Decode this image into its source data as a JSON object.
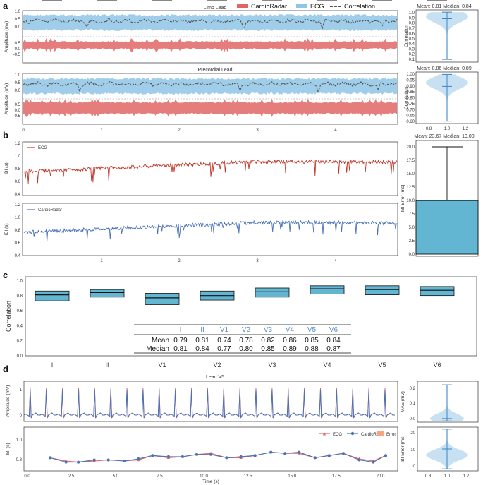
{
  "colors": {
    "radar_red": "#e06666",
    "radar_red_dark": "#c0392b",
    "ecg_blue": "#8fc5e6",
    "ibi_blue": "#4a72b8",
    "violin": "#b9d9ef",
    "violin_line": "#3d85c6",
    "box": "#63b6d2",
    "tick_blue": "#5b8fc4",
    "error_orange": "#f4a582"
  },
  "panel_labels": [
    "a",
    "b",
    "c",
    "d"
  ],
  "panel_a": {
    "legend": [
      {
        "label": "CardioRadar",
        "color": "#e06666",
        "style": "band"
      },
      {
        "label": "ECG",
        "color": "#8fc5e6",
        "style": "band"
      },
      {
        "label": "Correlation",
        "color": "#555555",
        "style": "dash"
      }
    ],
    "limb": {
      "title": "Limb Lead",
      "ylabel": "Amplitude (mV)",
      "yticks_top": [
        "1.0",
        "0.5",
        "0.0"
      ],
      "yticks_bottom": [
        "0.5",
        "0.0",
        "-0.5"
      ]
    },
    "precordial": {
      "title": "Precordial Lead",
      "ylabel": "Amplitude (mV)",
      "yticks_top": [
        "1.0",
        "0.5",
        "0.0"
      ],
      "yticks_bottom": [
        "0.5",
        "0.0",
        "-0.5"
      ]
    },
    "xticks": [
      "0",
      "1",
      "2",
      "3",
      "4"
    ],
    "violin_limb": {
      "title": "Mean: 0.81 Median: 0.84",
      "ylabel": "Correlation",
      "yticks": [
        "1.0",
        "0.9",
        "0.8",
        "0.7",
        "0.6",
        "0.5",
        "0.4",
        "0.3",
        "0.2",
        "0.1"
      ]
    },
    "violin_precordial": {
      "title": "Mean: 0.86 Median: 0.89",
      "ylabel": "Correlation",
      "yticks": [
        "1.00",
        "0.95",
        "0.90",
        "0.85",
        "0.80",
        "0.75",
        "0.70",
        "0.65",
        "0.60"
      ],
      "xticks": [
        "0.8",
        "1.0",
        "1.2"
      ]
    }
  },
  "panel_b": {
    "ecg_legend": "ECG",
    "radar_legend": "CardioRadar",
    "ylabel": "IBI (s)",
    "yticks": [
      "1.2",
      "1.0",
      "0.8",
      "0.6",
      "0.4"
    ],
    "xticks": [
      "1",
      "2",
      "3",
      "4"
    ],
    "box_title": "Mean: 23.67 Median: 10.00",
    "box_ylabel": "IBI Error (ms)",
    "box_yticks": [
      "20.0",
      "17.5",
      "15.0",
      "12.5",
      "10.0",
      "7.5",
      "5.0",
      "2.5",
      "0.0"
    ]
  },
  "panel_c": {
    "ylabel": "Correlation",
    "yticks": [
      "1.0",
      "0.8",
      "0.6",
      "0.4",
      "0.2",
      "0.0"
    ],
    "leads": [
      "I",
      "II",
      "V1",
      "V2",
      "V3",
      "V4",
      "V5",
      "V6"
    ],
    "table": {
      "row_labels": [
        "Mean",
        "Median"
      ]
    }
  },
  "panel_d": {
    "title": "Lead V5",
    "ylabel_top": "Amplitude (mV)",
    "yticks_top": [
      "1",
      "0"
    ],
    "ylabel_bottom": "IBI (s)",
    "yticks_bottom": [
      "1.0",
      "0.8"
    ],
    "xlabel": "Time (s)",
    "xticks": [
      "0.0",
      "2.5",
      "5.0",
      "7.5",
      "10.0",
      "12.5",
      "15.0",
      "17.5",
      "20.0"
    ],
    "legend": [
      "ECG",
      "CardioRadar",
      "Error"
    ],
    "mae": {
      "ylabel": "MAE (mV)",
      "yticks": [
        "0.2",
        "0.1",
        "0.0"
      ]
    },
    "ibi_err": {
      "ylabel": "IBI Error (ms)",
      "yticks": [
        "20",
        "10",
        "0"
      ],
      "xticks": [
        "0.8",
        "1.0",
        "1.2"
      ]
    }
  },
  "chart_data": [
    {
      "type": "box",
      "id": "lead_correlation",
      "title": "Correlation per lead",
      "ylabel": "Correlation",
      "ylim": [
        0.0,
        1.0
      ],
      "categories": [
        "I",
        "II",
        "V1",
        "V2",
        "V3",
        "V4",
        "V5",
        "V6"
      ],
      "whisker_low": [
        0.55,
        0.62,
        0.43,
        0.54,
        0.6,
        0.66,
        0.64,
        0.62
      ],
      "q1": [
        0.73,
        0.78,
        0.68,
        0.74,
        0.78,
        0.82,
        0.81,
        0.8
      ],
      "median": [
        0.81,
        0.84,
        0.77,
        0.8,
        0.85,
        0.89,
        0.88,
        0.87
      ],
      "q3": [
        0.86,
        0.88,
        0.83,
        0.86,
        0.9,
        0.93,
        0.93,
        0.92
      ],
      "whisker_high": [
        0.97,
        0.96,
        0.95,
        0.97,
        0.98,
        0.99,
        0.99,
        0.99
      ],
      "mean": [
        0.79,
        0.81,
        0.74,
        0.78,
        0.82,
        0.86,
        0.85,
        0.84
      ]
    },
    {
      "type": "box",
      "id": "ibi_error",
      "title": "Mean: 23.67 Median: 10.00",
      "ylabel": "IBI Error (ms)",
      "ylim": [
        0,
        20
      ],
      "whisker_low": 0.0,
      "q1": 0.0,
      "median": 10.0,
      "q3": 10.0,
      "whisker_high": 20.0
    },
    {
      "type": "line",
      "id": "lead_v5_ibi",
      "xlabel": "Time (s)",
      "ylabel": "IBI (s)",
      "ylim": [
        0.7,
        1.1
      ],
      "series": [
        {
          "name": "ECG",
          "x": [
            1.3,
            2.2,
            2.9,
            3.8,
            4.6,
            5.5,
            6.3,
            7.1,
            8.0,
            8.8,
            9.6,
            10.4,
            11.3,
            12.1,
            12.9,
            13.8,
            14.6,
            15.4,
            16.3,
            17.1,
            17.9,
            18.8,
            19.6,
            20.3
          ],
          "values": [
            0.82,
            0.79,
            0.78,
            0.79,
            0.8,
            0.79,
            0.8,
            0.84,
            0.82,
            0.83,
            0.85,
            0.86,
            0.82,
            0.82,
            0.84,
            0.87,
            0.86,
            0.86,
            0.82,
            0.84,
            0.86,
            0.81,
            0.79,
            0.84
          ]
        },
        {
          "name": "CardioRadar",
          "x": [
            1.3,
            2.2,
            2.9,
            3.8,
            4.6,
            5.5,
            6.3,
            7.1,
            8.0,
            8.8,
            9.6,
            10.4,
            11.3,
            12.1,
            12.9,
            13.8,
            14.6,
            15.4,
            16.3,
            17.1,
            17.9,
            18.8,
            19.6,
            20.3
          ],
          "values": [
            0.82,
            0.78,
            0.78,
            0.8,
            0.8,
            0.79,
            0.81,
            0.84,
            0.83,
            0.83,
            0.85,
            0.85,
            0.82,
            0.83,
            0.84,
            0.87,
            0.86,
            0.87,
            0.82,
            0.84,
            0.86,
            0.8,
            0.78,
            0.84
          ]
        }
      ]
    },
    {
      "type": "violin",
      "id": "limb_correlation",
      "title": "Mean: 0.81 Median: 0.84",
      "ylabel": "Correlation",
      "ylim": [
        0.05,
        1.0
      ],
      "min": 0.1,
      "median": 0.84,
      "max": 0.96
    },
    {
      "type": "violin",
      "id": "precordial_correlation",
      "title": "Mean: 0.86 Median: 0.89",
      "ylabel": "Correlation",
      "ylim": [
        0.58,
        1.01
      ],
      "min": 0.6,
      "median": 0.89,
      "max": 0.99
    },
    {
      "type": "violin",
      "id": "v5_mae",
      "ylabel": "MAE (mV)",
      "ylim": [
        -0.01,
        0.33
      ],
      "min": 0.0,
      "median": 0.02,
      "max": 0.3
    },
    {
      "type": "violin",
      "id": "v5_ibi_error",
      "ylabel": "IBI Error (ms)",
      "ylim": [
        -1,
        21
      ],
      "min": 0,
      "median": 10,
      "max": 20
    }
  ]
}
